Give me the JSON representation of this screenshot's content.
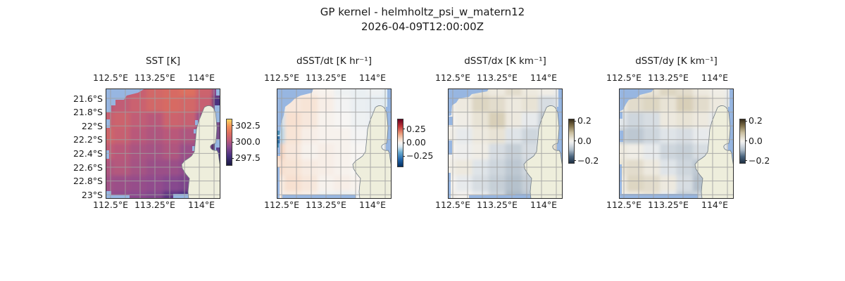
{
  "figure": {
    "suptitle": "GP kernel - helmholtz_psi_w_matern12",
    "subtitle": "2026-04-09T12:00:00Z",
    "colors": {
      "land": "#eeeedc",
      "masked_ocean": "#97b6e1",
      "gridline": "#a0a0a0",
      "coastline": "#707b85",
      "panel_border": "#2b2b2b",
      "text": "#1a1a1a"
    }
  },
  "chart_data": [
    {
      "type": "heatmap",
      "id": "sst",
      "title": "SST [K]",
      "x_ticks_top": [
        "112.5°E",
        "113.25°E",
        "114°E"
      ],
      "x_ticks_bottom": [
        "112.5°E",
        "113.25°E",
        "114°E"
      ],
      "y_ticks": [
        "21.6°S",
        "21.8°S",
        "22°S",
        "22.2°S",
        "22.4°S",
        "22.6°S",
        "22.8°S",
        "23°S"
      ],
      "lon_range": [
        112.3,
        114.24
      ],
      "lat_range": [
        -23.05,
        -21.45
      ],
      "grid": true,
      "colormap": "thermal",
      "clim": [
        296.5,
        303.5
      ],
      "colorbar": {
        "tick_labels": [
          "302.5",
          "300.0",
          "297.5"
        ],
        "tick_values": [
          302.5,
          300.0,
          297.5
        ]
      },
      "values": [
        [
          300.6,
          300.4,
          300.6,
          301.0,
          301.2,
          301.4,
          300.8,
          299.2
        ],
        [
          300.2,
          300.4,
          300.7,
          301.0,
          301.2,
          301.0,
          300.6,
          298.0
        ],
        [
          300.6,
          300.8,
          300.4,
          300.2,
          300.8,
          300.6,
          299.6,
          297.2
        ],
        [
          300.9,
          300.6,
          300.2,
          300.0,
          300.2,
          300.0,
          299.2,
          296.9
        ],
        [
          300.4,
          300.2,
          299.9,
          299.8,
          300.0,
          299.6,
          299.0,
          297.0
        ],
        [
          300.0,
          300.1,
          299.8,
          299.6,
          299.6,
          299.4,
          299.0,
          298.4
        ],
        [
          299.7,
          299.6,
          299.5,
          299.4,
          299.2,
          299.0,
          298.6,
          298.8
        ],
        [
          299.5,
          299.4,
          299.3,
          299.1,
          298.4,
          298.0,
          298.4,
          298.8
        ]
      ]
    },
    {
      "type": "heatmap",
      "id": "dsst_dt",
      "title": "dSST/dt [K hr⁻¹]",
      "x_ticks_top": [
        "112.5°E",
        "113.25°E",
        "114°E"
      ],
      "x_ticks_bottom": [
        "112.5°E",
        "113.25°E",
        "114°E"
      ],
      "y_ticks": [],
      "lon_range": [
        112.3,
        114.24
      ],
      "lat_range": [
        -23.05,
        -21.45
      ],
      "grid": true,
      "colormap": "rdbu_r",
      "clim": [
        -0.43,
        0.43
      ],
      "colorbar": {
        "tick_labels": [
          "0.25",
          "0.00",
          "−0.25"
        ],
        "tick_values": [
          0.25,
          0.0,
          -0.25
        ]
      },
      "values": [
        [
          0.02,
          0.03,
          0.02,
          0.01,
          -0.02,
          -0.03,
          -0.02,
          -0.05
        ],
        [
          -0.05,
          0.04,
          0.05,
          0.02,
          -0.01,
          -0.03,
          -0.04,
          -0.06
        ],
        [
          -0.08,
          0.06,
          0.04,
          0.01,
          0.0,
          -0.02,
          -0.03,
          -0.05
        ],
        [
          -0.1,
          0.05,
          0.02,
          0.01,
          0.01,
          -0.01,
          -0.02,
          -0.04
        ],
        [
          0.08,
          0.04,
          0.01,
          0.02,
          0.01,
          0.0,
          -0.02,
          -0.03
        ],
        [
          0.06,
          0.05,
          0.03,
          0.02,
          0.01,
          0.0,
          -0.01,
          -0.02
        ],
        [
          0.03,
          0.06,
          0.04,
          0.01,
          0.02,
          0.01,
          0.0,
          -0.02
        ],
        [
          0.02,
          0.03,
          0.02,
          -0.02,
          -0.03,
          -0.02,
          -0.01,
          -0.03
        ]
      ]
    },
    {
      "type": "heatmap",
      "id": "dsst_dx",
      "title": "dSST/dx [K km⁻¹]",
      "x_ticks_top": [
        "112.5°E",
        "113.25°E",
        "114°E"
      ],
      "x_ticks_bottom": [
        "112.5°E",
        "113.25°E",
        "114°E"
      ],
      "y_ticks": [],
      "lon_range": [
        112.3,
        114.24
      ],
      "lat_range": [
        -23.05,
        -21.45
      ],
      "grid": true,
      "colormap": "diff",
      "clim": [
        -0.22,
        0.22
      ],
      "colorbar": {
        "tick_labels": [
          "0.2",
          "0.0",
          "−0.2"
        ],
        "tick_values": [
          0.2,
          0.0,
          -0.2
        ]
      },
      "values": [
        [
          0.0,
          0.01,
          0.03,
          0.02,
          0.04,
          0.02,
          0.01,
          -0.02
        ],
        [
          0.01,
          0.02,
          0.05,
          0.04,
          0.02,
          0.03,
          -0.04,
          -0.03
        ],
        [
          0.0,
          0.01,
          0.03,
          0.06,
          0.02,
          -0.02,
          -0.06,
          -0.02
        ],
        [
          0.01,
          -0.02,
          0.02,
          0.03,
          -0.03,
          -0.05,
          -0.03,
          0.02
        ],
        [
          0.0,
          -0.01,
          0.01,
          -0.04,
          -0.06,
          -0.04,
          0.03,
          0.04
        ],
        [
          0.01,
          0.02,
          -0.03,
          -0.05,
          -0.07,
          -0.05,
          0.02,
          0.03
        ],
        [
          0.0,
          -0.02,
          -0.04,
          -0.06,
          -0.08,
          -0.06,
          -0.04,
          0.01
        ],
        [
          0.01,
          0.0,
          -0.02,
          -0.05,
          -0.09,
          -0.07,
          -0.03,
          0.0
        ]
      ]
    },
    {
      "type": "heatmap",
      "id": "dsst_dy",
      "title": "dSST/dy [K km⁻¹]",
      "x_ticks_top": [
        "112.5°E",
        "113.25°E",
        "114°E"
      ],
      "x_ticks_bottom": [
        "112.5°E",
        "113.25°E",
        "114°E"
      ],
      "y_ticks": [],
      "lon_range": [
        112.3,
        114.24
      ],
      "lat_range": [
        -23.05,
        -21.45
      ],
      "grid": true,
      "colormap": "diff",
      "clim": [
        -0.22,
        0.22
      ],
      "colorbar": {
        "tick_labels": [
          "0.2",
          "0.0",
          "−0.2"
        ],
        "tick_values": [
          0.2,
          0.0,
          -0.2
        ]
      },
      "values": [
        [
          0.01,
          0.02,
          0.03,
          0.05,
          0.04,
          0.02,
          0.01,
          -0.02
        ],
        [
          0.02,
          0.04,
          0.05,
          0.03,
          0.06,
          0.04,
          0.02,
          -0.03
        ],
        [
          -0.03,
          -0.05,
          -0.04,
          0.02,
          0.03,
          0.02,
          -0.02,
          -0.04
        ],
        [
          -0.06,
          -0.07,
          -0.05,
          -0.03,
          -0.04,
          -0.02,
          0.01,
          -0.05
        ],
        [
          0.02,
          0.01,
          -0.02,
          -0.05,
          -0.06,
          -0.04,
          -0.02,
          -0.03
        ],
        [
          0.03,
          0.04,
          0.02,
          -0.03,
          -0.05,
          -0.07,
          -0.03,
          -0.02
        ],
        [
          0.02,
          0.05,
          0.04,
          0.02,
          -0.04,
          -0.08,
          -0.05,
          -0.01
        ],
        [
          0.01,
          0.02,
          0.03,
          -0.02,
          -0.06,
          -0.05,
          -0.03,
          0.0
        ]
      ]
    }
  ]
}
